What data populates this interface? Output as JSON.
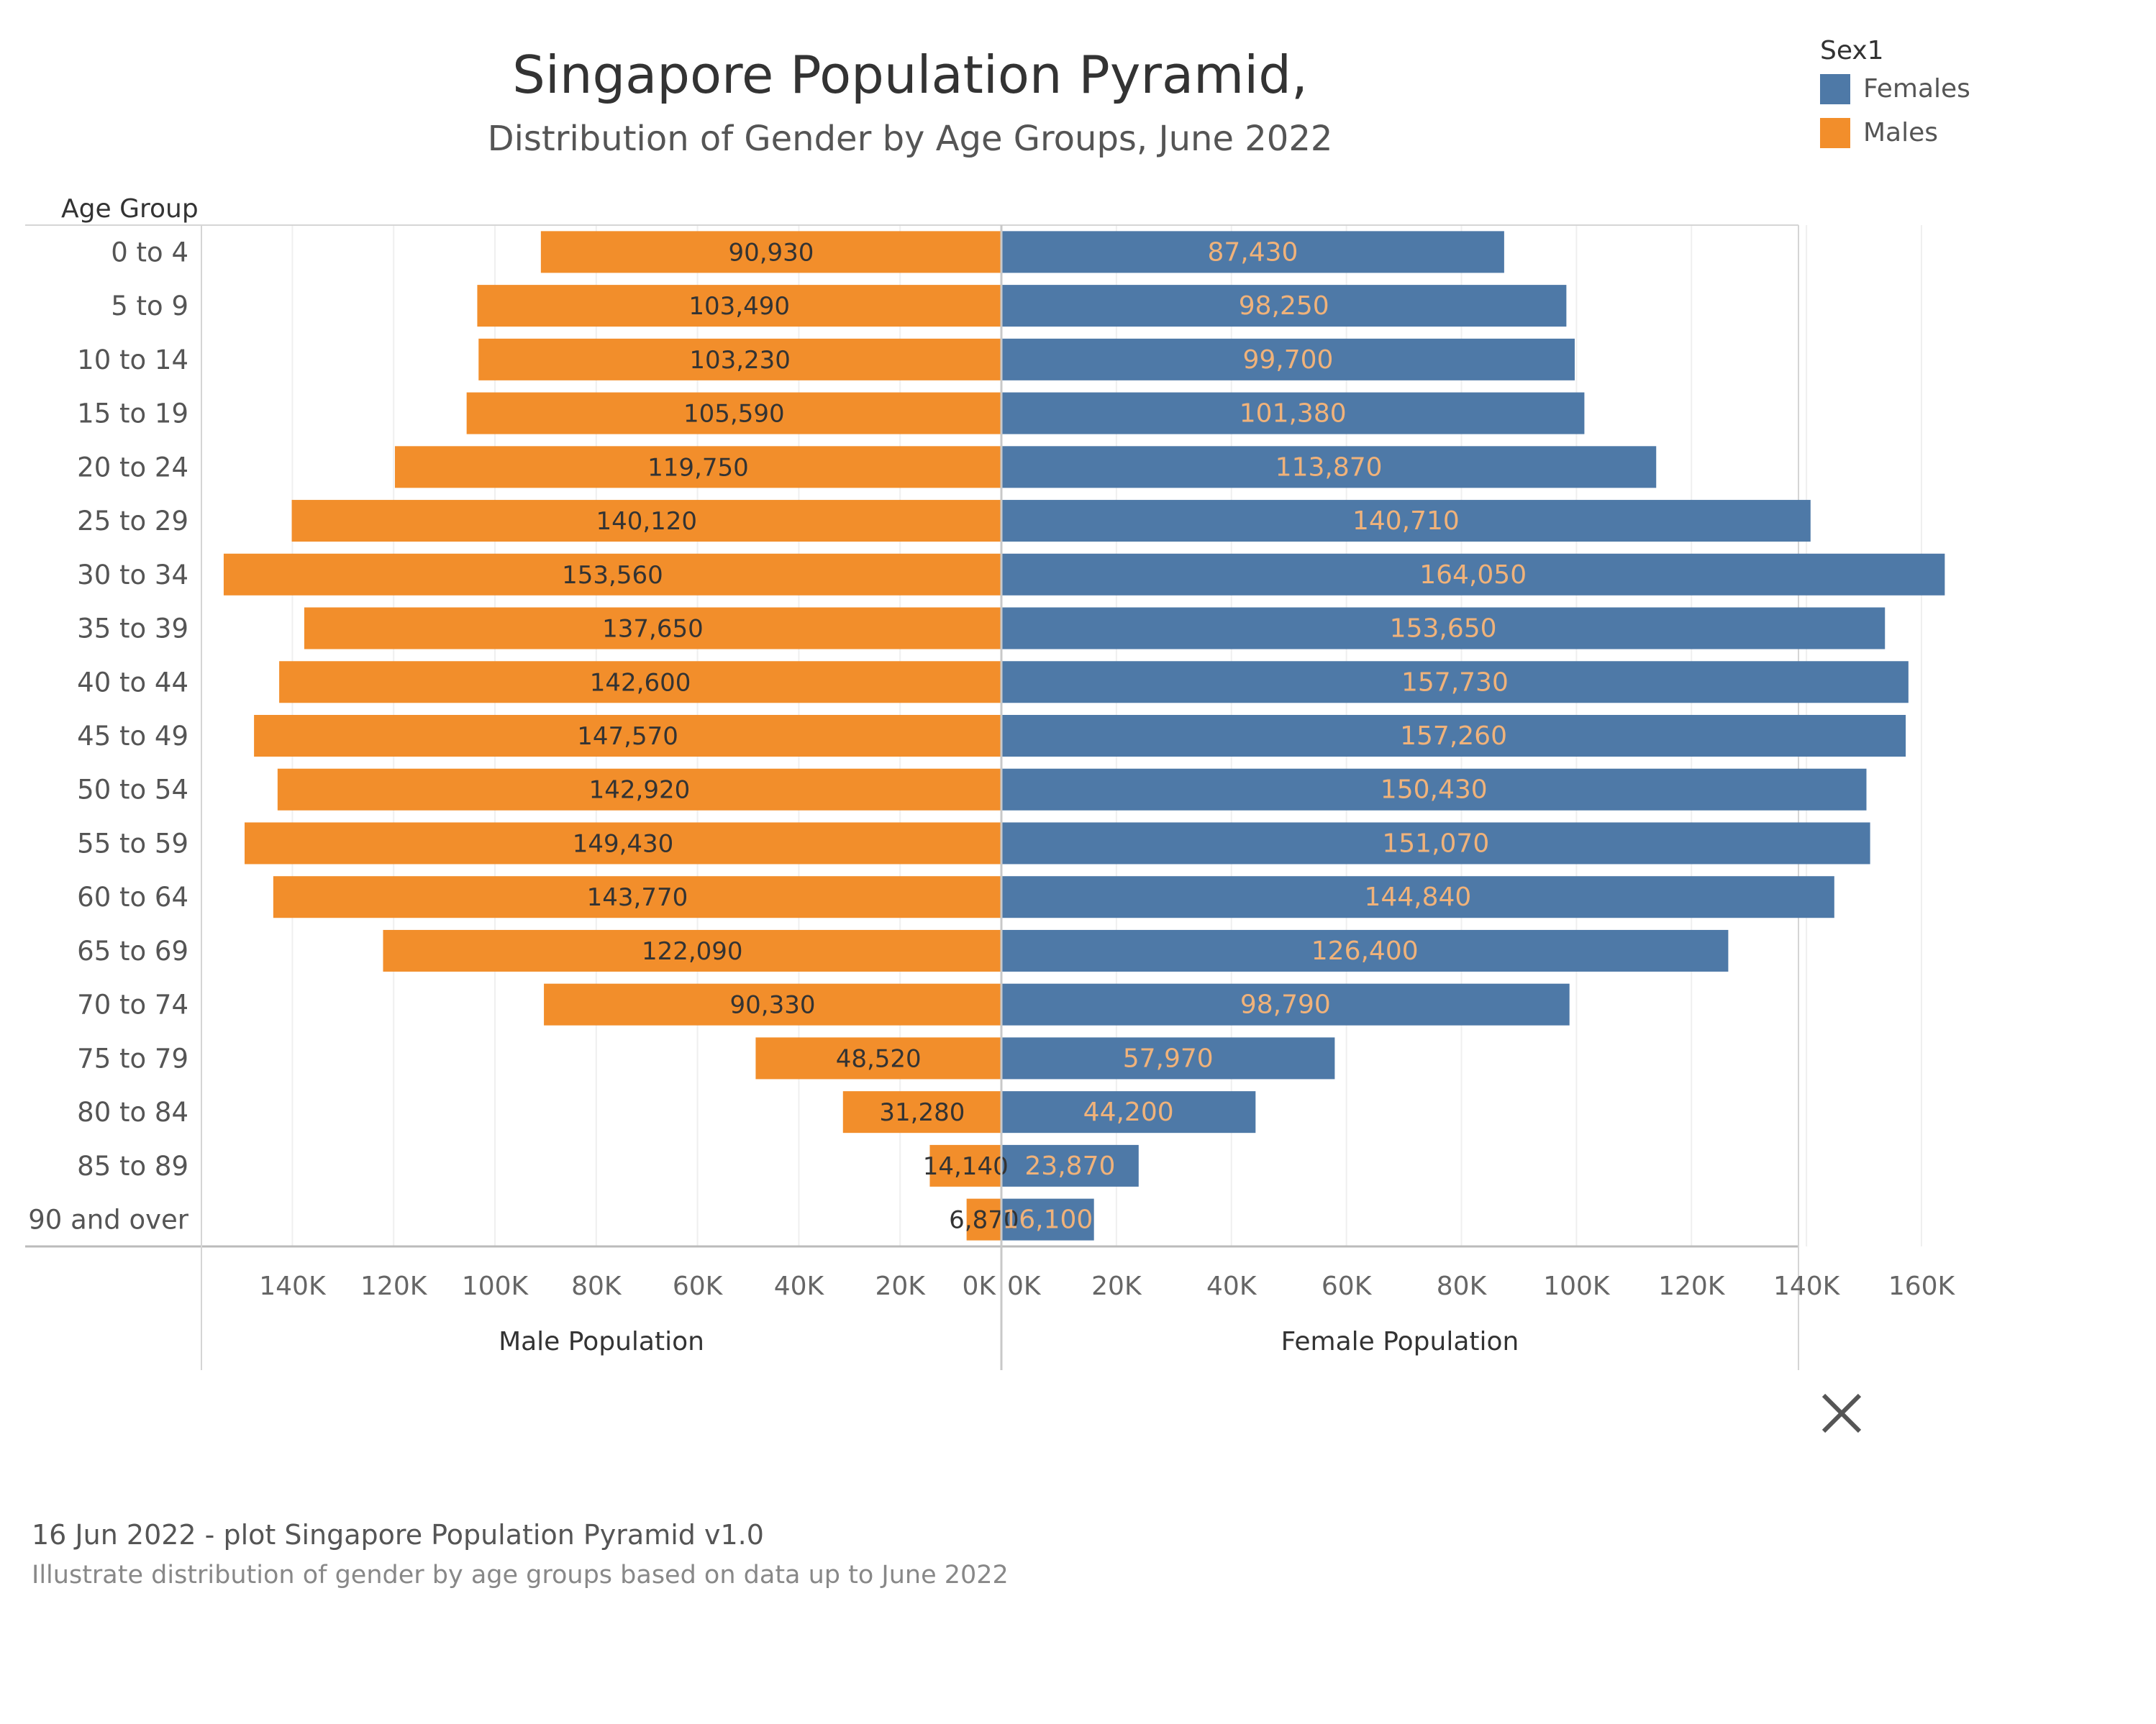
{
  "header": {
    "title": "Singapore Population Pyramid,",
    "subtitle": "Distribution of Gender by Age Groups, June 2022"
  },
  "legend": {
    "title": "Sex1",
    "items": [
      {
        "label": "Females",
        "color": "#4e79a7"
      },
      {
        "label": "Males",
        "color": "#f28e2b"
      }
    ]
  },
  "close_icon": "close-icon",
  "footer": {
    "title": "16 Jun 2022 - plot Singapore Population Pyramid v1.0",
    "description": "Illustrate distribution of gender by age groups based on data up to June 2022"
  },
  "chart_data": {
    "type": "bar",
    "orientation": "horizontal-pyramid",
    "row_header": "Age Group",
    "categories": [
      "0 to 4",
      "5 to 9",
      "10 to 14",
      "15 to 19",
      "20 to 24",
      "25 to 29",
      "30 to 34",
      "35 to 39",
      "40 to 44",
      "45 to 49",
      "50 to 54",
      "55 to 59",
      "60 to 64",
      "65 to 69",
      "70 to 74",
      "75 to 79",
      "80 to 84",
      "85 to 89",
      "90 and over"
    ],
    "series": [
      {
        "name": "Males",
        "color": "#f28e2b",
        "label_color": "#333333",
        "values": [
          90930,
          103490,
          103230,
          105590,
          119750,
          140120,
          153560,
          137650,
          142600,
          147570,
          142920,
          149430,
          143770,
          122090,
          90330,
          48520,
          31280,
          14140,
          6870
        ],
        "labels": [
          "90,930",
          "103,490",
          "103,230",
          "105,590",
          "119,750",
          "140,120",
          "153,560",
          "137,650",
          "142,600",
          "147,570",
          "142,920",
          "149,430",
          "143,770",
          "122,090",
          "90,330",
          "48,520",
          "31,280",
          "14,140",
          "6,870"
        ]
      },
      {
        "name": "Females",
        "color": "#4e79a7",
        "label_color": "#f0b27a",
        "values": [
          87430,
          98250,
          99700,
          101380,
          113870,
          140710,
          164050,
          153650,
          157730,
          157260,
          150430,
          151070,
          144840,
          126400,
          98790,
          57970,
          44200,
          23870,
          16100
        ],
        "labels": [
          "87,430",
          "98,250",
          "99,700",
          "101,380",
          "113,870",
          "140,710",
          "164,050",
          "153,650",
          "157,730",
          "157,260",
          "150,430",
          "151,070",
          "144,840",
          "126,400",
          "98,790",
          "57,970",
          "44,200",
          "23,870",
          "16,100"
        ]
      }
    ],
    "male_axis": {
      "label": "Male Population",
      "xlim": [
        0,
        160000
      ],
      "reversed": true,
      "ticks": [
        0,
        20000,
        40000,
        60000,
        80000,
        100000,
        120000,
        140000
      ],
      "tick_labels": [
        "0K",
        "20K",
        "40K",
        "60K",
        "80K",
        "100K",
        "120K",
        "140K"
      ]
    },
    "female_axis": {
      "label": "Female Population",
      "xlim": [
        0,
        170000
      ],
      "ticks": [
        0,
        20000,
        40000,
        60000,
        80000,
        100000,
        120000,
        140000,
        160000
      ],
      "tick_labels": [
        "0K",
        "20K",
        "40K",
        "60K",
        "80K",
        "100K",
        "120K",
        "140K",
        "160K"
      ]
    },
    "grid": true,
    "legend_position": "top-right"
  }
}
